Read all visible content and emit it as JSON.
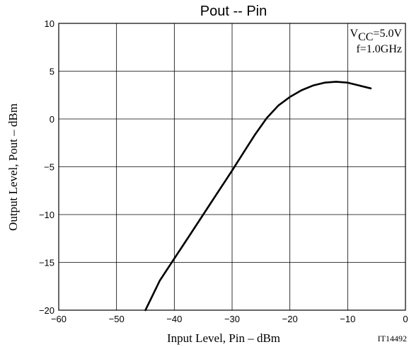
{
  "chart_data": {
    "type": "line",
    "title": "Pout -- Pin",
    "xlabel": "Input Level, Pin – dBm",
    "ylabel": "Output Level, Pout – dBm",
    "xlim": [
      -60,
      0
    ],
    "ylim": [
      -20,
      10
    ],
    "xticks": [
      -60,
      -50,
      -40,
      -30,
      -20,
      -10,
      0
    ],
    "yticks": [
      -20,
      -15,
      -10,
      -5,
      0,
      5,
      10
    ],
    "xtick_labels": [
      "−60",
      "−50",
      "−40",
      "−30",
      "−20",
      "−10",
      "0"
    ],
    "ytick_labels": [
      "−20",
      "−15",
      "−10",
      "−5",
      "0",
      "5",
      "10"
    ],
    "grid": true,
    "annotations": {
      "vcc_prefix": "V",
      "vcc_sub": "CC",
      "vcc_value": "=5.0V",
      "freq": "f=1.0GHz"
    },
    "figure_code": "IT14492",
    "series": [
      {
        "color": "#000000",
        "points": [
          [
            -45,
            -20
          ],
          [
            -42.5,
            -16.9
          ],
          [
            -40,
            -14.6
          ],
          [
            -37.5,
            -12.3
          ],
          [
            -35,
            -10.0
          ],
          [
            -32.5,
            -7.7
          ],
          [
            -30,
            -5.4
          ],
          [
            -28,
            -3.5
          ],
          [
            -26,
            -1.6
          ],
          [
            -24,
            0.1
          ],
          [
            -22,
            1.4
          ],
          [
            -20,
            2.3
          ],
          [
            -18,
            3.0
          ],
          [
            -16,
            3.5
          ],
          [
            -14,
            3.8
          ],
          [
            -12,
            3.9
          ],
          [
            -10,
            3.8
          ],
          [
            -8,
            3.5
          ],
          [
            -6,
            3.2
          ]
        ]
      }
    ]
  }
}
